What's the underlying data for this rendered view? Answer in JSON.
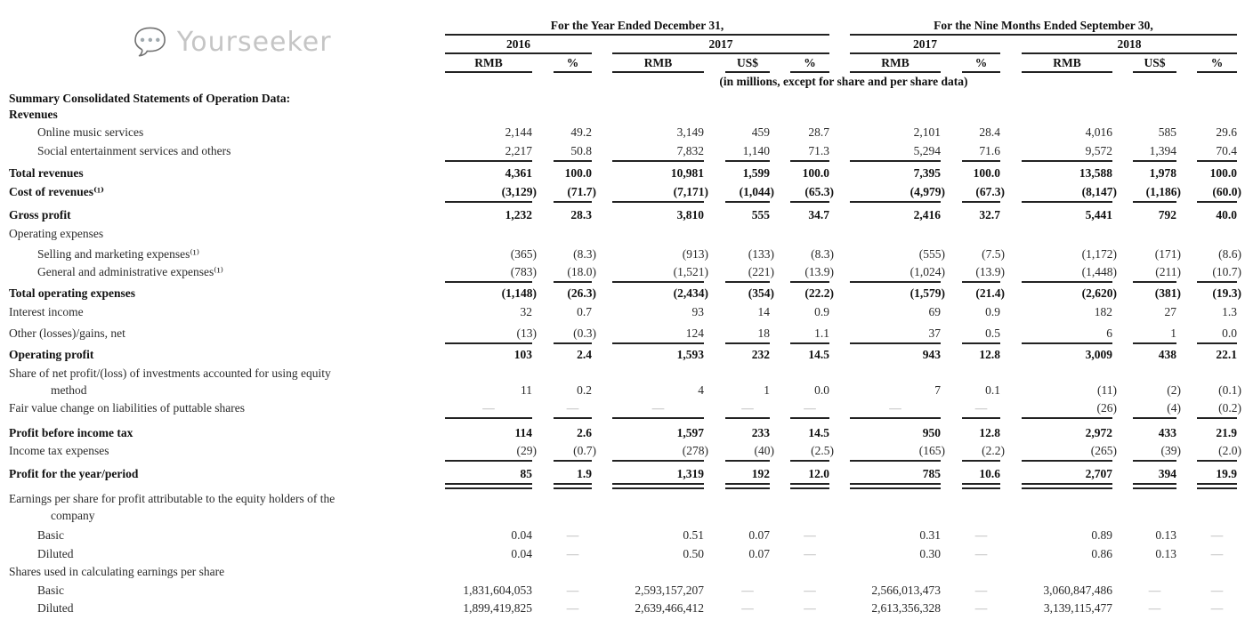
{
  "header": {
    "group_year": "For the Year Ended December 31,",
    "group_nine": "For the Nine Months Ended September 30,",
    "years": [
      "2016",
      "2017",
      "2017",
      "2018"
    ],
    "columns": [
      "RMB",
      "%",
      "RMB",
      "US$",
      "%",
      "RMB",
      "%",
      "RMB",
      "US$",
      "%"
    ],
    "note": "(in millions, except for share and per share data)"
  },
  "rows": [
    {
      "label": "Summary Consolidated Statements of Operation Data:",
      "bold": true,
      "indent": 0,
      "values": []
    },
    {
      "label": "Revenues",
      "bold": true,
      "indent": 0,
      "values": []
    },
    {
      "label": "Online music services",
      "bold": false,
      "indent": 1,
      "values": [
        "2,144",
        "49.2",
        "3,149",
        "459",
        "28.7",
        "2,101",
        "28.4",
        "4,016",
        "585",
        "29.6"
      ]
    },
    {
      "label": "Social entertainment services and others",
      "bold": false,
      "indent": 1,
      "values": [
        "2,217",
        "50.8",
        "7,832",
        "1,140",
        "71.3",
        "5,294",
        "71.6",
        "9,572",
        "1,394",
        "70.4"
      ]
    },
    {
      "label": "Total revenues",
      "bold": true,
      "indent": 0,
      "values": [
        "4,361",
        "100.0",
        "10,981",
        "1,599",
        "100.0",
        "7,395",
        "100.0",
        "13,588",
        "1,978",
        "100.0"
      ]
    },
    {
      "label": "Cost of revenues⁽¹⁾",
      "bold": true,
      "indent": 0,
      "values": [
        "(3,129)",
        "(71.7)",
        "(7,171)",
        "(1,044)",
        "(65.3)",
        "(4,979)",
        "(67.3)",
        "(8,147)",
        "(1,186)",
        "(60.0)"
      ]
    },
    {
      "label": "Gross profit",
      "bold": true,
      "indent": 0,
      "values": [
        "1,232",
        "28.3",
        "3,810",
        "555",
        "34.7",
        "2,416",
        "32.7",
        "5,441",
        "792",
        "40.0"
      ]
    },
    {
      "label": "Operating expenses",
      "bold": false,
      "indent": 0,
      "values": []
    },
    {
      "label": "Selling and marketing expenses⁽¹⁾",
      "bold": false,
      "indent": 1,
      "values": [
        "(365)",
        "(8.3)",
        "(913)",
        "(133)",
        "(8.3)",
        "(555)",
        "(7.5)",
        "(1,172)",
        "(171)",
        "(8.6)"
      ]
    },
    {
      "label": "General and administrative expenses⁽¹⁾",
      "bold": false,
      "indent": 1,
      "values": [
        "(783)",
        "(18.0)",
        "(1,521)",
        "(221)",
        "(13.9)",
        "(1,024)",
        "(13.9)",
        "(1,448)",
        "(211)",
        "(10.7)"
      ]
    },
    {
      "label": "Total operating expenses",
      "bold": true,
      "indent": 0,
      "values": [
        "(1,148)",
        "(26.3)",
        "(2,434)",
        "(354)",
        "(22.2)",
        "(1,579)",
        "(21.4)",
        "(2,620)",
        "(381)",
        "(19.3)"
      ]
    },
    {
      "label": "Interest income",
      "bold": false,
      "indent": 0,
      "values": [
        "32",
        "0.7",
        "93",
        "14",
        "0.9",
        "69",
        "0.9",
        "182",
        "27",
        "1.3"
      ]
    },
    {
      "label": "Other (losses)/gains, net",
      "bold": false,
      "indent": 0,
      "values": [
        "(13)",
        "(0.3)",
        "124",
        "18",
        "1.1",
        "37",
        "0.5",
        "6",
        "1",
        "0.0"
      ]
    },
    {
      "label": "Operating profit",
      "bold": true,
      "indent": 0,
      "values": [
        "103",
        "2.4",
        "1,593",
        "232",
        "14.5",
        "943",
        "12.8",
        "3,009",
        "438",
        "22.1"
      ]
    },
    {
      "label": "Share of net profit/(loss) of investments accounted for using equity",
      "bold": false,
      "indent": 0,
      "values": []
    },
    {
      "label": "method",
      "bold": false,
      "indent": 2,
      "values": [
        "11",
        "0.2",
        "4",
        "1",
        "0.0",
        "7",
        "0.1",
        "(11)",
        "(2)",
        "(0.1)"
      ]
    },
    {
      "label": "Fair value change on liabilities of puttable shares",
      "bold": false,
      "indent": 0,
      "values": [
        "—",
        "—",
        "—",
        "—",
        "—",
        "—",
        "—",
        "(26)",
        "(4)",
        "(0.2)"
      ]
    },
    {
      "label": "Profit before income tax",
      "bold": true,
      "indent": 0,
      "values": [
        "114",
        "2.6",
        "1,597",
        "233",
        "14.5",
        "950",
        "12.8",
        "2,972",
        "433",
        "21.9"
      ]
    },
    {
      "label": "Income tax expenses",
      "bold": false,
      "indent": 0,
      "values": [
        "(29)",
        "(0.7)",
        "(278)",
        "(40)",
        "(2.5)",
        "(165)",
        "(2.2)",
        "(265)",
        "(39)",
        "(2.0)"
      ]
    },
    {
      "label": "Profit for the year/period",
      "bold": true,
      "indent": 0,
      "values": [
        "85",
        "1.9",
        "1,319",
        "192",
        "12.0",
        "785",
        "10.6",
        "2,707",
        "394",
        "19.9"
      ]
    },
    {
      "label": "Earnings per share for profit attributable to the equity holders of the",
      "bold": false,
      "indent": 0,
      "values": []
    },
    {
      "label": "company",
      "bold": false,
      "indent": 2,
      "values": []
    },
    {
      "label": "Basic",
      "bold": false,
      "indent": 1,
      "values": [
        "0.04",
        "—",
        "0.51",
        "0.07",
        "—",
        "0.31",
        "—",
        "0.89",
        "0.13",
        "—"
      ]
    },
    {
      "label": "Diluted",
      "bold": false,
      "indent": 1,
      "values": [
        "0.04",
        "—",
        "0.50",
        "0.07",
        "—",
        "0.30",
        "—",
        "0.86",
        "0.13",
        "—"
      ]
    },
    {
      "label": "Shares used in calculating earnings per share",
      "bold": false,
      "indent": 0,
      "values": []
    },
    {
      "label": "Basic",
      "bold": false,
      "indent": 1,
      "values": [
        "1,831,604,053",
        "—",
        "2,593,157,207",
        "—",
        "—",
        "2,566,013,473",
        "—",
        "3,060,847,486",
        "—",
        "—"
      ]
    },
    {
      "label": "Diluted",
      "bold": false,
      "indent": 1,
      "values": [
        "1,899,419,825",
        "—",
        "2,639,466,412",
        "—",
        "—",
        "2,613,356,328",
        "—",
        "3,139,115,477",
        "—",
        "—"
      ]
    }
  ],
  "watermark": {
    "text": "Yourseeker",
    "icon": "wechat-icon"
  }
}
